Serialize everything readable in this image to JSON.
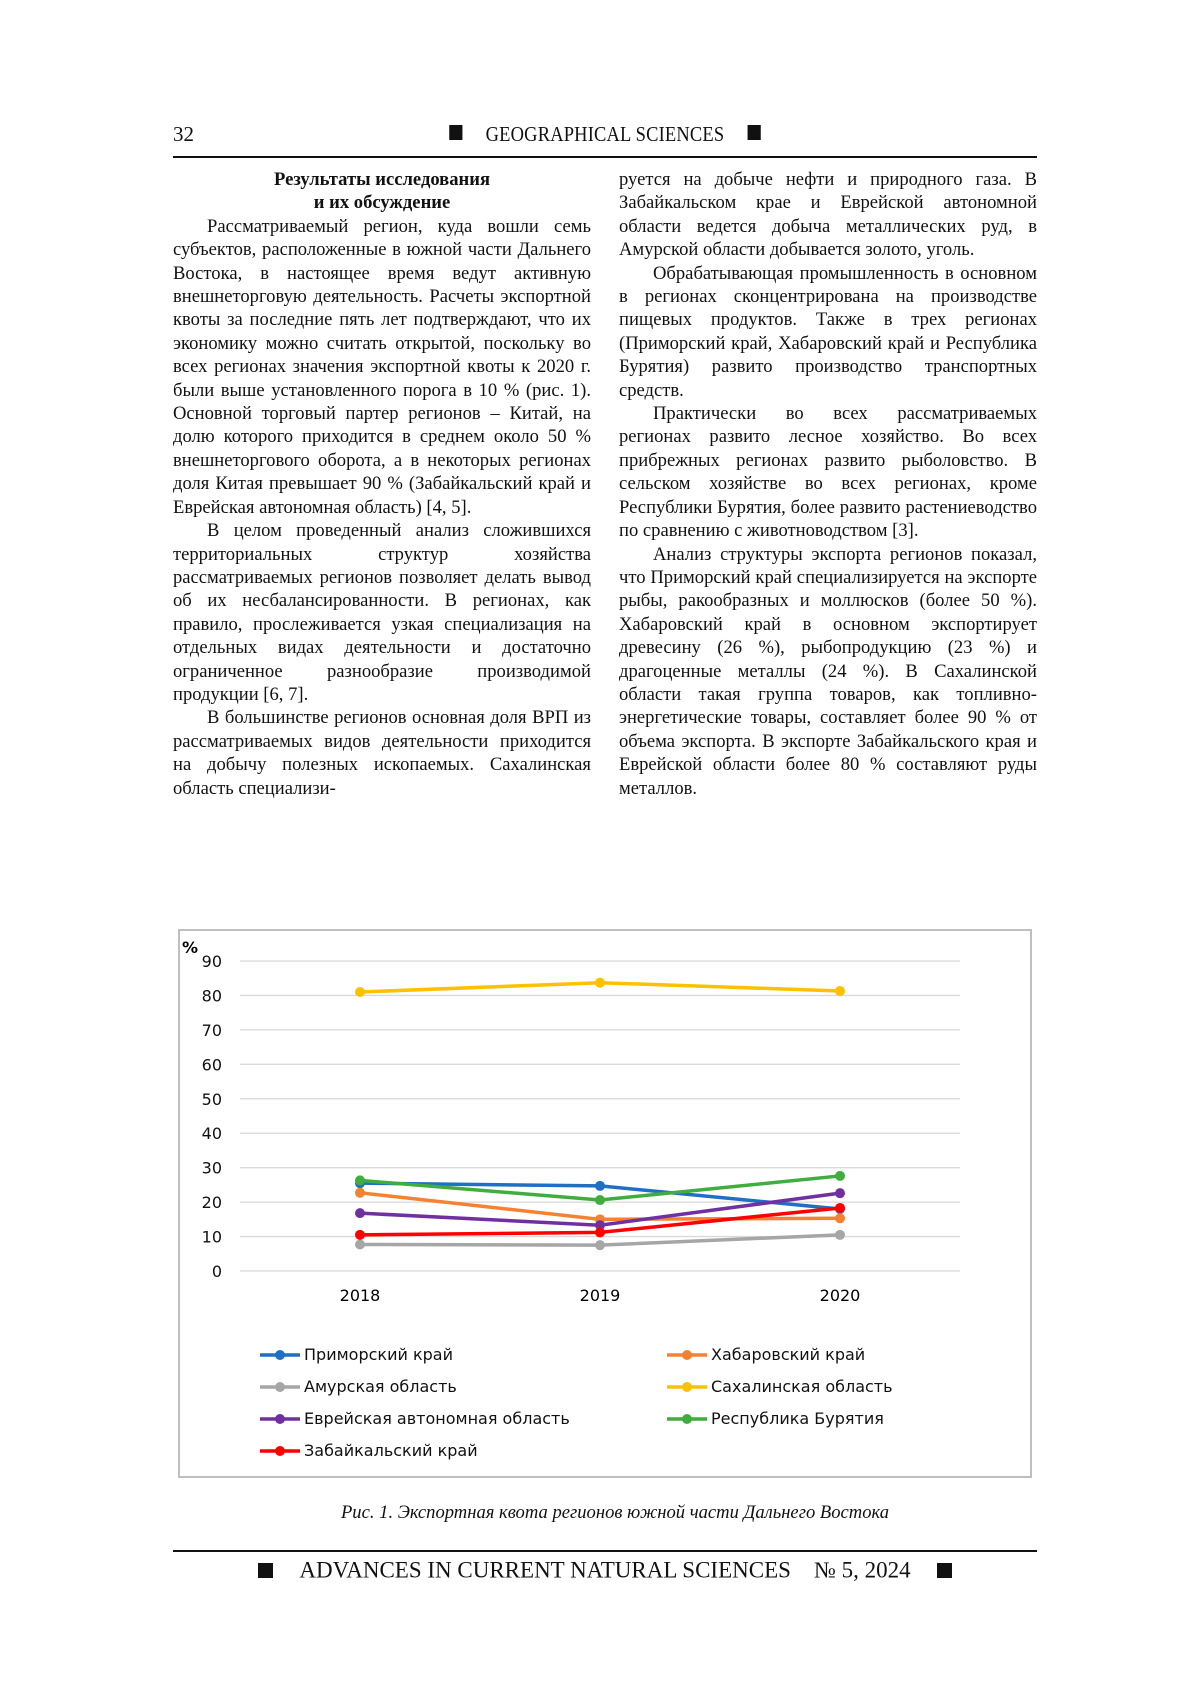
{
  "header": {
    "page_number": "32",
    "journal_section": "GEOGRAPHICAL SCIENCES"
  },
  "left_column": {
    "heading": [
      "Результаты исследования",
      "и их обсуждение"
    ],
    "paragraphs": [
      "Рассматриваемый регион, куда вошли семь субъектов, расположенные в южной части Дальнего Востока, в настоящее время ведут активную внешнеторговую деятельность. Расчеты экспортной квоты за последние пять лет подтверждают, что их экономику можно считать открытой, поскольку во всех регионах значения экспортной квоты к 2020 г. были выше установленного порога в 10 % (рис. 1). Основной торговый партер регионов – Китай, на долю которого приходится в среднем около 50 % внешнеторгового оборота, а в некоторых регионах доля Китая превышает 90 % (Забайкальский край и Еврейская автономная область) [4, 5].",
      "В целом проведенный анализ сложившихся территориальных структур хозяйства рассматриваемых регионов позволяет делать вывод об их несбалансированности. В регионах, как правило, прослеживается узкая специализация на отдельных видах деятельности и достаточно ограниченное разнообразие производимой продукции [6, 7].",
      "В большинстве регионов основная доля ВРП из рассматриваемых видов деятельности приходится на добычу полезных ископаемых. Сахалинская область специализи-"
    ]
  },
  "right_column": {
    "continuation": "руется на добыче нефти и природного газа. В Забайкальском крае и Еврейской автономной области ведется добыча металлических руд, в Амурской области добывается золото, уголь.",
    "paragraphs": [
      "Обрабатывающая промышленность в основном в регионах сконцентрирована на производстве пищевых продуктов. Также в трех регионах (Приморский край, Хабаровский край и Республика Бурятия) развито производство транспортных средств.",
      "Практически во всех рассматриваемых регионах развито лесное хозяйство. Во всех прибрежных регионах развито рыболовство. В сельском хозяйстве во всех регионах, кроме Республики Бурятия, более развито растениеводство по сравнению с животноводством [3].",
      "Анализ структуры экспорта регионов показал, что Приморский край специализируется на экспорте рыбы, ракообразных и моллюсков (более 50 %). Хабаровский край в основном экспортирует древесину (26 %), рыбопродукцию (23 %) и драгоценные металлы (24 %). В Сахалинской области такая группа товаров, как топливно-энергетические товары, составляет более 90 % от объема экспорта. В экспорте Забайкальского края и Еврейской области более 80 % составляют руды металлов."
    ]
  },
  "chart_data": {
    "type": "line",
    "ylabel": "%",
    "categories": [
      "2018",
      "2019",
      "2020"
    ],
    "ylim": [
      0,
      90
    ],
    "yticks": [
      0,
      10,
      20,
      30,
      40,
      50,
      60,
      70,
      80,
      90
    ],
    "grid": true,
    "legend_placement": "bottom",
    "series": [
      {
        "name": "Приморский край",
        "color": "#1f6fc4",
        "values": [
          25.5,
          24.7,
          18.0
        ]
      },
      {
        "name": "Хабаровский край",
        "color": "#f58232",
        "values": [
          22.7,
          15.0,
          15.3
        ]
      },
      {
        "name": "Амурская область",
        "color": "#a6a6a6",
        "values": [
          7.7,
          7.5,
          10.5
        ]
      },
      {
        "name": "Сахалинская область",
        "color": "#ffc000",
        "values": [
          81.0,
          83.7,
          81.3
        ]
      },
      {
        "name": "Еврейская автономная область",
        "color": "#7030a0",
        "values": [
          16.8,
          13.3,
          22.6
        ]
      },
      {
        "name": "Республика Бурятия",
        "color": "#3fae3f",
        "values": [
          26.3,
          20.6,
          27.6
        ]
      },
      {
        "name": "Забайкальский край",
        "color": "#ff0000",
        "values": [
          10.5,
          11.2,
          18.3
        ]
      }
    ]
  },
  "caption": "Рис. 1. Экспортная квота регионов южной части Дальнего Востока",
  "footer": {
    "journal": "ADVANCES IN CURRENT NATURAL SCIENCES",
    "issue": "№ 5, 2024"
  }
}
